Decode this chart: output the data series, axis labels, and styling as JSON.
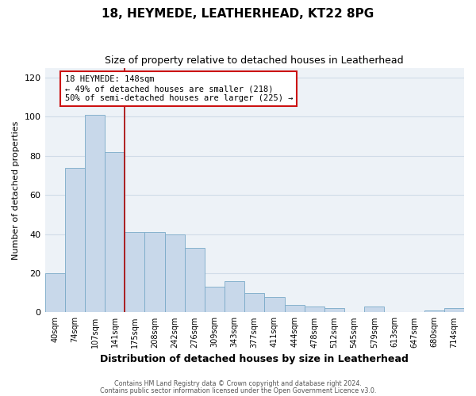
{
  "title": "18, HEYMEDE, LEATHERHEAD, KT22 8PG",
  "subtitle": "Size of property relative to detached houses in Leatherhead",
  "xlabel": "Distribution of detached houses by size in Leatherhead",
  "ylabel": "Number of detached properties",
  "bar_labels": [
    "40sqm",
    "74sqm",
    "107sqm",
    "141sqm",
    "175sqm",
    "208sqm",
    "242sqm",
    "276sqm",
    "309sqm",
    "343sqm",
    "377sqm",
    "411sqm",
    "444sqm",
    "478sqm",
    "512sqm",
    "545sqm",
    "579sqm",
    "613sqm",
    "647sqm",
    "680sqm",
    "714sqm"
  ],
  "bar_values": [
    20,
    74,
    101,
    82,
    41,
    41,
    40,
    33,
    13,
    16,
    10,
    8,
    4,
    3,
    2,
    0,
    3,
    0,
    0,
    1,
    2
  ],
  "bar_color": "#c8d8ea",
  "bar_edge_color": "#7aaac8",
  "vline_x_index": 3,
  "vline_color": "#aa1111",
  "annotation_title": "18 HEYMEDE: 148sqm",
  "annotation_line1": "← 49% of detached houses are smaller (218)",
  "annotation_line2": "50% of semi-detached houses are larger (225) →",
  "annotation_box_color": "#cc1111",
  "ylim": [
    0,
    125
  ],
  "yticks": [
    0,
    20,
    40,
    60,
    80,
    100,
    120
  ],
  "footer1": "Contains HM Land Registry data © Crown copyright and database right 2024.",
  "footer2": "Contains public sector information licensed under the Open Government Licence v3.0.",
  "bg_color": "#ffffff",
  "grid_color": "#d0dce8"
}
